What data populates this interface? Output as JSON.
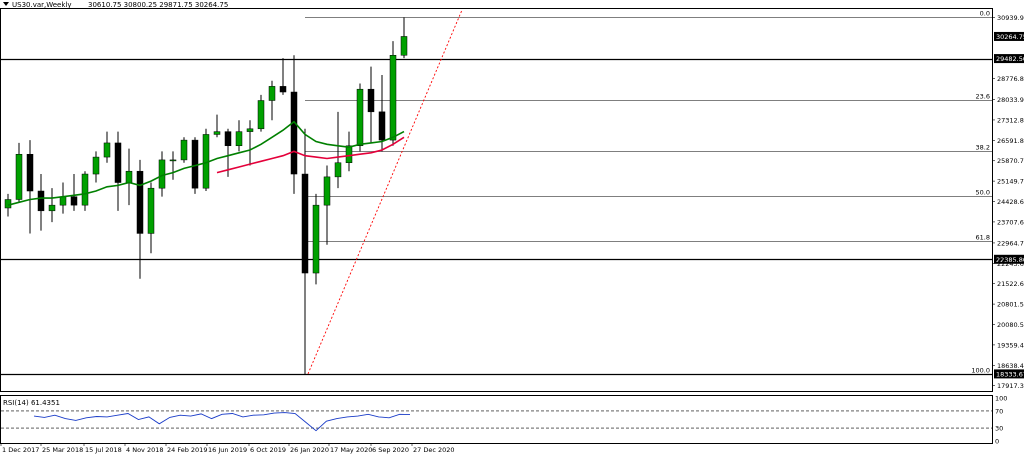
{
  "header": {
    "symbol": "US30.var,Weekly",
    "ohlc": "30610.75 30800.25 29871.75 30264.75"
  },
  "indicator": {
    "label": "RSI(14) 61.4351",
    "levels": [
      {
        "value": 100,
        "label": "100"
      },
      {
        "value": 70,
        "label": "70"
      },
      {
        "value": 30,
        "label": "30"
      },
      {
        "value": 0,
        "label": "0"
      }
    ]
  },
  "chart_data": {
    "type": "candlestick",
    "y_ticks": [
      "30939.95",
      "30264.75",
      "29482.50",
      "28776.80",
      "28033.90",
      "27312.85",
      "26591.80",
      "25870.75",
      "25149.70",
      "24428.65",
      "23707.60",
      "22964.70",
      "22385.80",
      "22243.65",
      "21522.60",
      "20801.55",
      "20080.50",
      "19359.45",
      "18638.40",
      "18333.67",
      "17917.35"
    ],
    "x_ticks": [
      "1 Dec 2017",
      "25 Mar 2018",
      "15 Jul 2018",
      "4 Nov 2018",
      "24 Feb 2019",
      "16 Jun 2019",
      "6 Oct 2019",
      "26 Jan 2020",
      "17 May 2020",
      "6 Sep 2020",
      "27 Dec 2020"
    ],
    "last_price": "30264.75",
    "horizontal_levels": [
      {
        "value": 29482.5,
        "label": "29482.50",
        "color": "#000000"
      },
      {
        "value": 22385.8,
        "label": "22385.80",
        "color": "#000000"
      },
      {
        "value": 18333.67,
        "label": "18333.67",
        "color": "#000000"
      }
    ],
    "fibonacci": {
      "levels": [
        {
          "ratio": "0.0",
          "value": 30939.95
        },
        {
          "ratio": "23.6",
          "value": 28033.9
        },
        {
          "ratio": "38.2",
          "value": 26230
        },
        {
          "ratio": "50.0",
          "value": 24630
        },
        {
          "ratio": "61.8",
          "value": 23050
        },
        {
          "ratio": "100.0",
          "value": 18333.67
        }
      ],
      "color": "#000000",
      "trend_line_color": "#ff0000"
    },
    "moving_averages": [
      {
        "color": "#008000"
      },
      {
        "color": "#e4003a"
      }
    ],
    "colors": {
      "bull_candle": "#00a000",
      "bear_candle": "#000000",
      "rsi_line": "#1a3cc8"
    },
    "ylim": [
      17800,
      31200
    ],
    "candles": [
      {
        "d": "Dec 2017",
        "o": 24200,
        "h": 24700,
        "l": 23900,
        "c": 24500
      },
      {
        "d": "Jan 2018",
        "o": 24500,
        "h": 26500,
        "l": 24400,
        "c": 26100
      },
      {
        "d": "Feb 2018",
        "o": 26100,
        "h": 26600,
        "l": 23300,
        "c": 24800
      },
      {
        "d": "Mar 2018",
        "o": 24800,
        "h": 25400,
        "l": 23400,
        "c": 24100
      },
      {
        "d": "Apr 2018",
        "o": 24100,
        "h": 24900,
        "l": 23700,
        "c": 24300
      },
      {
        "d": "May 2018",
        "o": 24300,
        "h": 25100,
        "l": 24000,
        "c": 24600
      },
      {
        "d": "Jun 2018",
        "o": 24600,
        "h": 25400,
        "l": 24100,
        "c": 24300
      },
      {
        "d": "Jul 2018",
        "o": 24300,
        "h": 25500,
        "l": 24100,
        "c": 25400
      },
      {
        "d": "Aug 2018",
        "o": 25400,
        "h": 26200,
        "l": 25100,
        "c": 26000
      },
      {
        "d": "Sep 2018",
        "o": 26000,
        "h": 26900,
        "l": 25800,
        "c": 26500
      },
      {
        "d": "Oct 2018",
        "o": 26500,
        "h": 26900,
        "l": 24100,
        "c": 25100
      },
      {
        "d": "Nov 2018",
        "o": 25100,
        "h": 26300,
        "l": 24300,
        "c": 25500
      },
      {
        "d": "Dec 2018",
        "o": 25500,
        "h": 25900,
        "l": 21700,
        "c": 23300
      },
      {
        "d": "Jan 2019",
        "o": 23300,
        "h": 25100,
        "l": 22600,
        "c": 24900
      },
      {
        "d": "Feb 2019",
        "o": 24900,
        "h": 26200,
        "l": 24600,
        "c": 25900
      },
      {
        "d": "Mar 2019",
        "o": 25900,
        "h": 26200,
        "l": 25200,
        "c": 25900
      },
      {
        "d": "Apr 2019",
        "o": 25900,
        "h": 26700,
        "l": 25800,
        "c": 26600
      },
      {
        "d": "May 2019",
        "o": 26600,
        "h": 26700,
        "l": 24700,
        "c": 24900
      },
      {
        "d": "Jun 2019",
        "o": 24900,
        "h": 27000,
        "l": 24800,
        "c": 26800
      },
      {
        "d": "Jul 2019",
        "o": 26800,
        "h": 27500,
        "l": 26700,
        "c": 26900
      },
      {
        "d": "Aug 2019",
        "o": 26900,
        "h": 27000,
        "l": 25300,
        "c": 26400
      },
      {
        "d": "Sep 2019",
        "o": 26400,
        "h": 27300,
        "l": 26200,
        "c": 26900
      },
      {
        "d": "Oct 2019",
        "o": 26900,
        "h": 27300,
        "l": 25700,
        "c": 27000
      },
      {
        "d": "Nov 2019",
        "o": 27000,
        "h": 28200,
        "l": 26900,
        "c": 28000
      },
      {
        "d": "Dec 2019",
        "o": 28000,
        "h": 28700,
        "l": 27300,
        "c": 28500
      },
      {
        "d": "Jan 2020",
        "o": 28500,
        "h": 29500,
        "l": 28200,
        "c": 28300
      },
      {
        "d": "Feb 2020",
        "o": 28300,
        "h": 29600,
        "l": 24700,
        "c": 25400
      },
      {
        "d": "Mar 2020",
        "o": 25400,
        "h": 27000,
        "l": 18300,
        "c": 21900
      },
      {
        "d": "Apr 2020",
        "o": 21900,
        "h": 24700,
        "l": 21500,
        "c": 24300
      },
      {
        "d": "May 2020",
        "o": 24300,
        "h": 25700,
        "l": 22900,
        "c": 25300
      },
      {
        "d": "Jun 2020",
        "o": 25300,
        "h": 27600,
        "l": 24900,
        "c": 25800
      },
      {
        "d": "Jul 2020",
        "o": 25800,
        "h": 26900,
        "l": 25500,
        "c": 26400
      },
      {
        "d": "Aug 2020",
        "o": 26400,
        "h": 28600,
        "l": 26200,
        "c": 28400
      },
      {
        "d": "Sep 2020",
        "o": 28400,
        "h": 29200,
        "l": 26500,
        "c": 27600
      },
      {
        "d": "Oct 2020",
        "o": 27600,
        "h": 28900,
        "l": 26200,
        "c": 26600
      },
      {
        "d": "Nov 2020",
        "o": 26600,
        "h": 30100,
        "l": 26400,
        "c": 29600
      },
      {
        "d": "Dec 2020",
        "o": 29600,
        "h": 30939.95,
        "l": 29500,
        "c": 30264.75
      }
    ],
    "ma_green": [
      24300,
      24400,
      24500,
      24550,
      24550,
      24600,
      24650,
      24700,
      24800,
      24950,
      25000,
      25100,
      25000,
      25150,
      25350,
      25450,
      25600,
      25700,
      25800,
      25950,
      26050,
      26150,
      26250,
      26450,
      26700,
      26950,
      27250,
      26800,
      26550,
      26450,
      26400,
      26350,
      26450,
      26500,
      26550,
      26700,
      26900
    ],
    "ma_red": [
      null,
      null,
      null,
      null,
      null,
      null,
      null,
      null,
      null,
      null,
      null,
      null,
      null,
      null,
      null,
      null,
      null,
      null,
      null,
      25450,
      25550,
      25650,
      25750,
      25850,
      25950,
      26050,
      26200,
      26050,
      26000,
      25950,
      26000,
      26050,
      26100,
      26150,
      26250,
      26450,
      26700
    ],
    "rsi": [
      58,
      55,
      60,
      52,
      48,
      54,
      57,
      56,
      60,
      64,
      50,
      56,
      40,
      55,
      60,
      58,
      63,
      52,
      62,
      64,
      56,
      60,
      61,
      65,
      66,
      64,
      44,
      24,
      46,
      52,
      56,
      58,
      62,
      56,
      54,
      62,
      61.4351
    ]
  }
}
